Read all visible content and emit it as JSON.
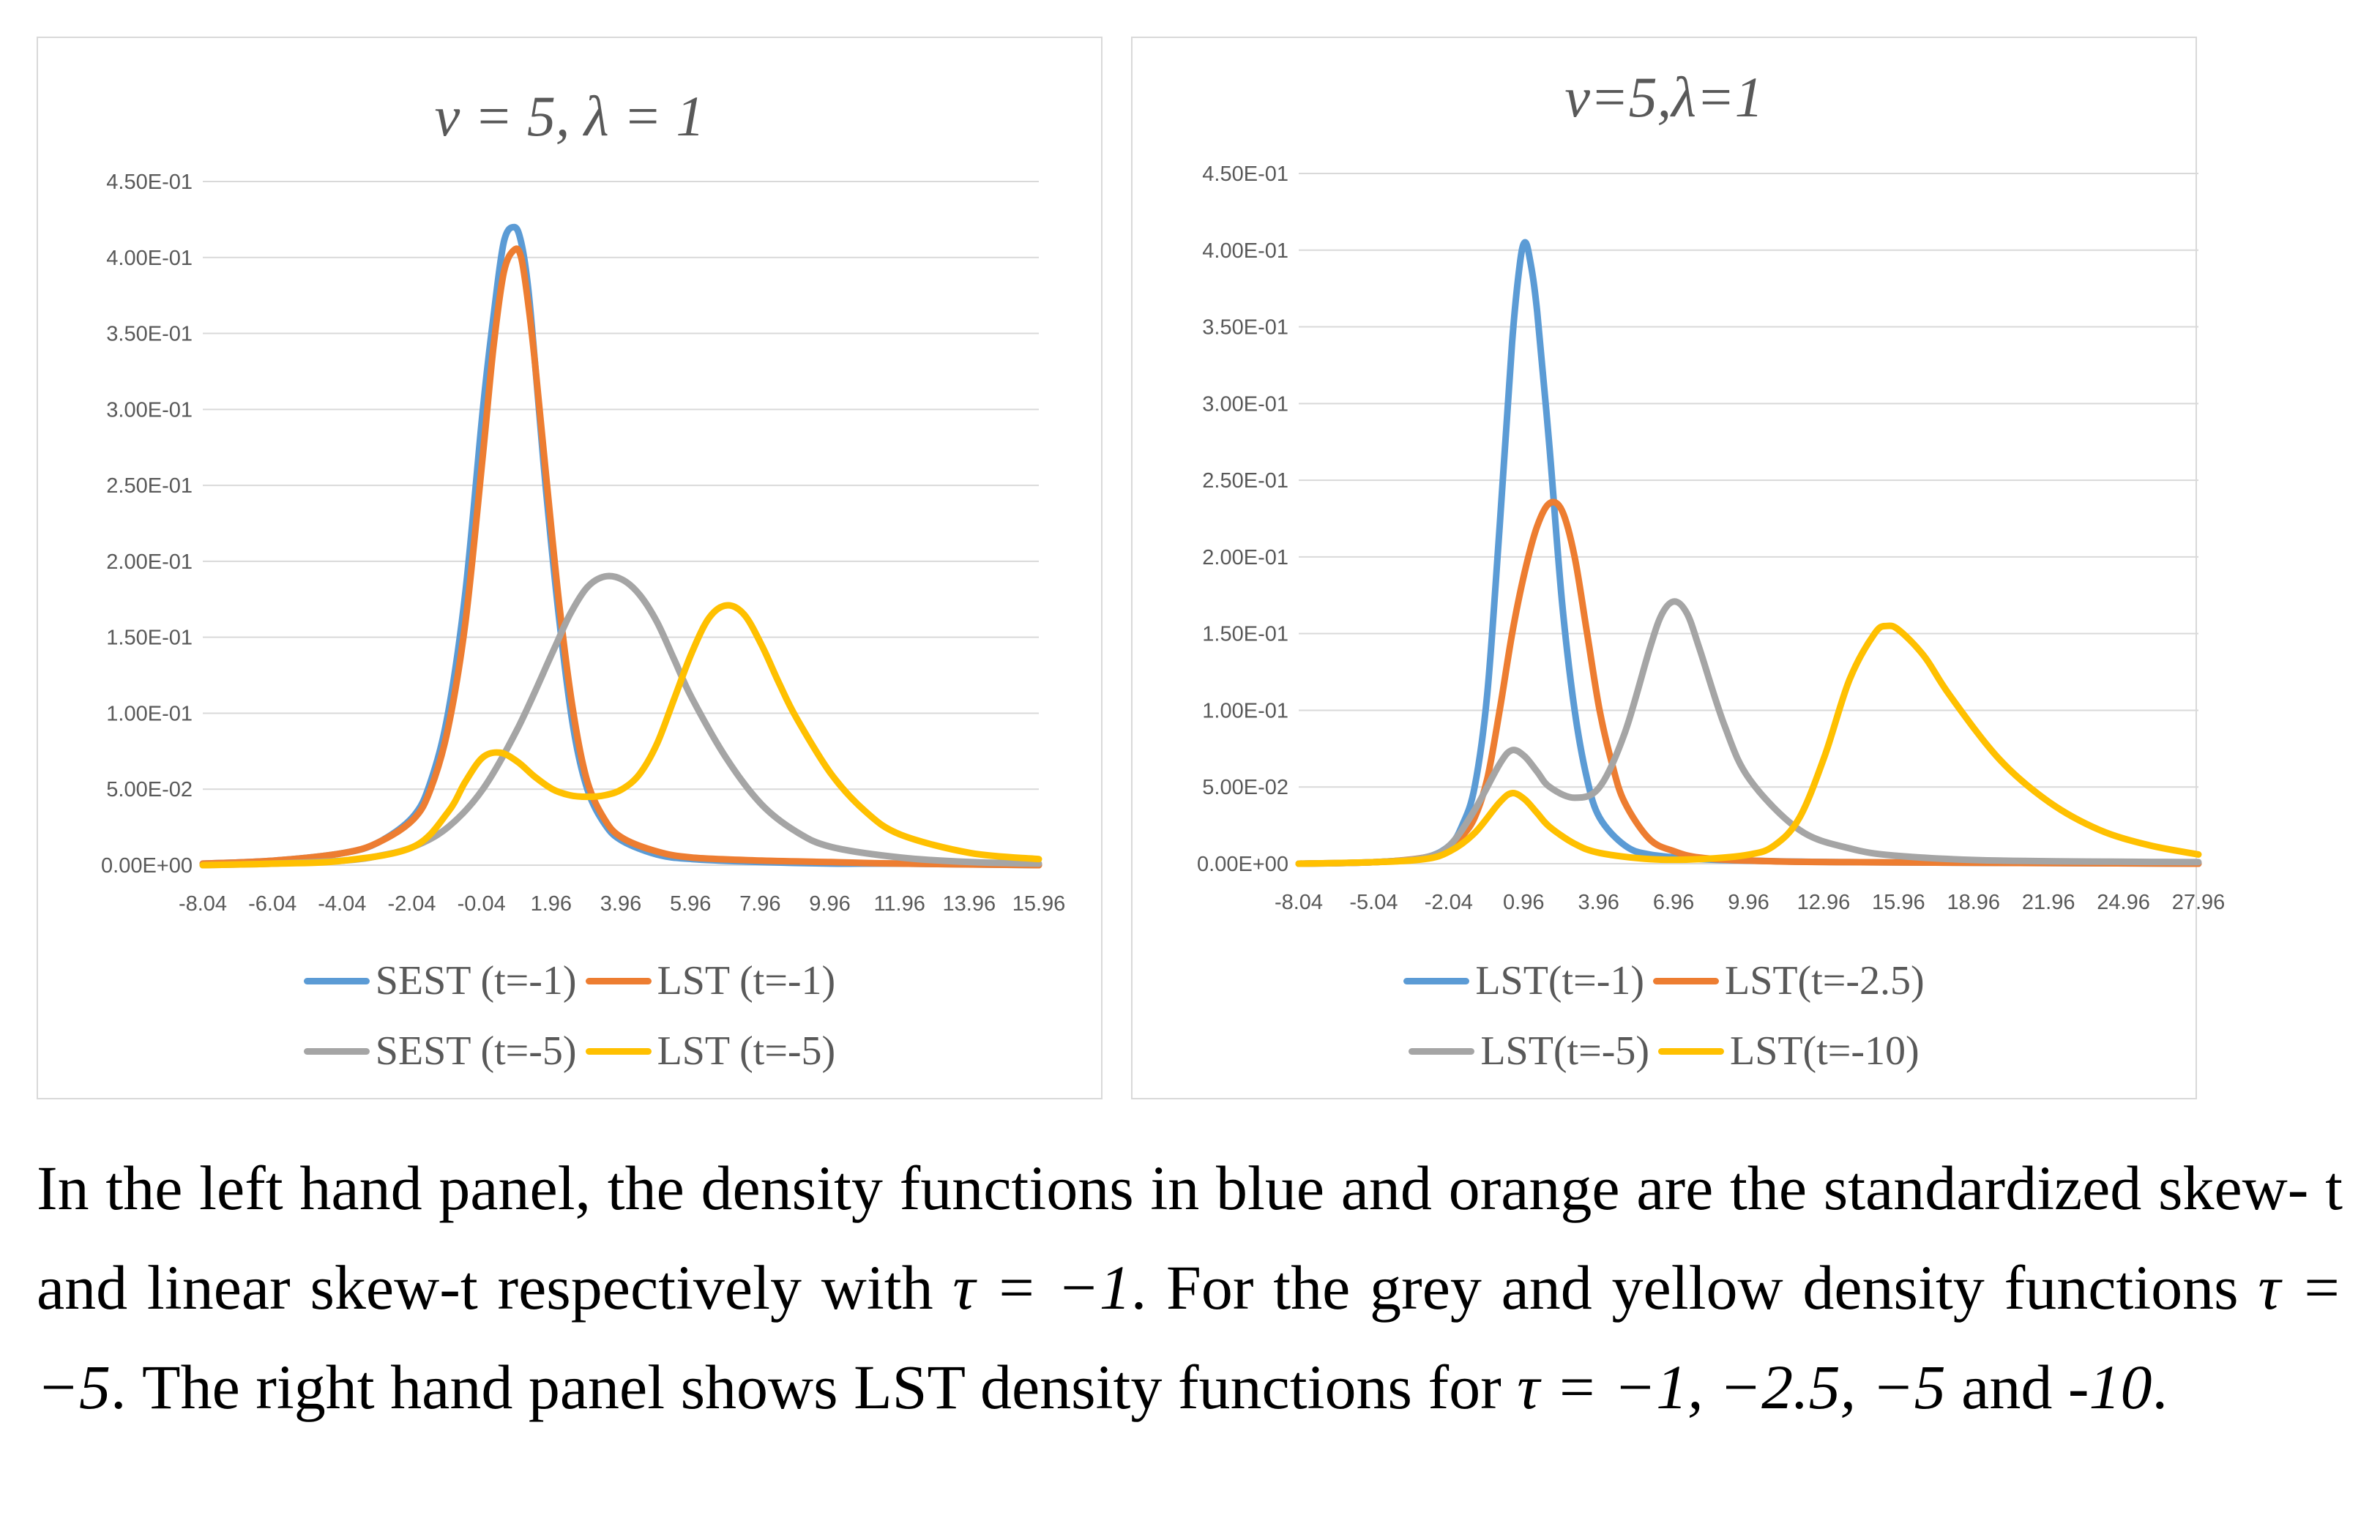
{
  "colors": {
    "blue": "#5B9BD5",
    "orange": "#ED7D31",
    "gray": "#A5A5A5",
    "yellow": "#FFC000",
    "grid": "#d9d9d9",
    "text": "#595959"
  },
  "chart_data": [
    {
      "type": "line",
      "title": "ν = 5, λ = 1",
      "xlabel": "",
      "ylabel": "",
      "ylim": [
        0,
        0.45
      ],
      "xlim": [
        -8.04,
        15.96
      ],
      "x_tick_labels": [
        "-8.04",
        "-6.04",
        "-4.04",
        "-2.04",
        "-0.04",
        "1.96",
        "3.96",
        "5.96",
        "7.96",
        "9.96",
        "11.96",
        "13.96",
        "15.96"
      ],
      "y_tick_labels": [
        "0.00E+00",
        "5.00E-02",
        "1.00E-01",
        "1.50E-01",
        "2.00E-01",
        "2.50E-01",
        "3.00E-01",
        "3.50E-01",
        "4.00E-01",
        "4.50E-01"
      ],
      "grid": true,
      "legend_position": "bottom",
      "series": [
        {
          "name": "SEST (t=-1)",
          "color": "#5B9BD5",
          "x": [
            -8.04,
            -6.0,
            -4.0,
            -3.0,
            -2.0,
            -1.5,
            -1.0,
            -0.5,
            0.0,
            0.3,
            0.6,
            0.9,
            1.1,
            1.3,
            1.5,
            1.8,
            2.2,
            2.6,
            3.0,
            3.5,
            4.0,
            5.0,
            6.0,
            8.0,
            10.0,
            12.0,
            15.96
          ],
          "y": [
            0.001,
            0.003,
            0.008,
            0.015,
            0.032,
            0.055,
            0.1,
            0.18,
            0.3,
            0.36,
            0.41,
            0.42,
            0.41,
            0.38,
            0.33,
            0.25,
            0.16,
            0.09,
            0.05,
            0.027,
            0.016,
            0.007,
            0.004,
            0.002,
            0.001,
            0.001,
            0.0
          ]
        },
        {
          "name": "LST (t=-1)",
          "color": "#ED7D31",
          "x": [
            -8.04,
            -6.0,
            -4.0,
            -3.0,
            -2.0,
            -1.5,
            -1.0,
            -0.5,
            0.0,
            0.3,
            0.6,
            0.9,
            1.1,
            1.3,
            1.5,
            1.8,
            2.2,
            2.6,
            3.0,
            3.5,
            4.0,
            5.0,
            6.0,
            8.0,
            10.0,
            12.0,
            15.96
          ],
          "y": [
            0.001,
            0.003,
            0.008,
            0.015,
            0.03,
            0.05,
            0.09,
            0.16,
            0.27,
            0.34,
            0.39,
            0.405,
            0.4,
            0.37,
            0.33,
            0.26,
            0.17,
            0.1,
            0.055,
            0.03,
            0.018,
            0.009,
            0.005,
            0.003,
            0.002,
            0.001,
            0.0
          ]
        },
        {
          "name": "SEST (t=-5)",
          "color": "#A5A5A5",
          "x": [
            -8.04,
            -6.0,
            -4.0,
            -3.0,
            -2.0,
            -1.0,
            0.0,
            1.0,
            2.0,
            2.5,
            3.0,
            3.5,
            4.0,
            4.5,
            5.0,
            5.5,
            6.0,
            7.0,
            8.0,
            9.0,
            10.0,
            12.0,
            14.0,
            15.96
          ],
          "y": [
            0.0,
            0.001,
            0.003,
            0.006,
            0.012,
            0.025,
            0.05,
            0.09,
            0.14,
            0.165,
            0.183,
            0.19,
            0.188,
            0.178,
            0.16,
            0.135,
            0.11,
            0.07,
            0.04,
            0.022,
            0.012,
            0.005,
            0.002,
            0.001
          ]
        },
        {
          "name": "LST (t=-5)",
          "color": "#FFC000",
          "x": [
            -8.04,
            -6.0,
            -4.0,
            -2.0,
            -1.0,
            -0.5,
            0.0,
            0.5,
            1.0,
            1.5,
            2.0,
            2.5,
            3.0,
            3.5,
            4.0,
            4.5,
            5.0,
            5.5,
            6.0,
            6.5,
            7.0,
            7.5,
            8.0,
            8.5,
            9.0,
            10.0,
            11.0,
            12.0,
            14.0,
            15.96
          ],
          "y": [
            0.0,
            0.001,
            0.003,
            0.012,
            0.035,
            0.055,
            0.071,
            0.074,
            0.068,
            0.058,
            0.05,
            0.046,
            0.045,
            0.046,
            0.05,
            0.06,
            0.08,
            0.11,
            0.14,
            0.163,
            0.171,
            0.165,
            0.145,
            0.12,
            0.097,
            0.06,
            0.035,
            0.02,
            0.008,
            0.004
          ]
        }
      ]
    },
    {
      "type": "line",
      "title": "ν=5,λ=1",
      "xlabel": "",
      "ylabel": "",
      "ylim": [
        0,
        0.45
      ],
      "xlim": [
        -8.04,
        27.96
      ],
      "x_tick_labels": [
        "-8.04",
        "-5.04",
        "-2.04",
        "0.96",
        "3.96",
        "6.96",
        "9.96",
        "12.96",
        "15.96",
        "18.96",
        "21.96",
        "24.96",
        "27.96"
      ],
      "y_tick_labels": [
        "0.00E+00",
        "5.00E-02",
        "1.00E-01",
        "1.50E-01",
        "2.00E-01",
        "2.50E-01",
        "3.00E-01",
        "3.50E-01",
        "4.00E-01",
        "4.50E-01"
      ],
      "grid": true,
      "legend_position": "bottom",
      "series": [
        {
          "name": "LST(t=-1)",
          "color": "#5B9BD5",
          "x": [
            -8.04,
            -5.0,
            -3.0,
            -2.0,
            -1.5,
            -1.0,
            -0.5,
            0.0,
            0.5,
            0.8,
            1.0,
            1.2,
            1.5,
            2.0,
            2.5,
            3.0,
            3.5,
            4.0,
            5.0,
            6.0,
            8.0,
            10.0,
            14.0,
            27.96
          ],
          "y": [
            0.0,
            0.001,
            0.004,
            0.012,
            0.025,
            0.05,
            0.11,
            0.22,
            0.34,
            0.39,
            0.405,
            0.395,
            0.36,
            0.27,
            0.17,
            0.1,
            0.055,
            0.03,
            0.012,
            0.006,
            0.003,
            0.002,
            0.001,
            0.0
          ]
        },
        {
          "name": "LST(t=-2.5)",
          "color": "#ED7D31",
          "x": [
            -8.04,
            -5.0,
            -3.0,
            -2.0,
            -1.5,
            -1.0,
            -0.5,
            0.0,
            0.5,
            1.0,
            1.5,
            2.0,
            2.5,
            3.0,
            3.5,
            4.0,
            4.5,
            5.0,
            6.0,
            7.0,
            8.0,
            10.0,
            14.0,
            27.96
          ],
          "y": [
            0.0,
            0.001,
            0.004,
            0.01,
            0.018,
            0.03,
            0.055,
            0.1,
            0.15,
            0.19,
            0.22,
            0.235,
            0.23,
            0.2,
            0.15,
            0.1,
            0.065,
            0.04,
            0.016,
            0.008,
            0.004,
            0.002,
            0.001,
            0.0
          ]
        },
        {
          "name": "LST(t=-5)",
          "color": "#A5A5A5",
          "x": [
            -8.04,
            -5.0,
            -3.0,
            -2.0,
            -1.0,
            0.0,
            0.5,
            1.0,
            1.5,
            2.0,
            3.0,
            4.0,
            5.0,
            6.0,
            6.5,
            7.0,
            7.5,
            8.0,
            9.0,
            10.0,
            12.0,
            14.0,
            16.0,
            20.0,
            27.96
          ],
          "y": [
            0.0,
            0.001,
            0.004,
            0.012,
            0.035,
            0.065,
            0.074,
            0.07,
            0.06,
            0.05,
            0.043,
            0.05,
            0.085,
            0.14,
            0.163,
            0.171,
            0.163,
            0.14,
            0.09,
            0.055,
            0.022,
            0.01,
            0.005,
            0.002,
            0.001
          ]
        },
        {
          "name": "LST(t=-10)",
          "color": "#FFC000",
          "x": [
            -8.04,
            -5.0,
            -3.0,
            -2.0,
            -1.0,
            0.0,
            0.5,
            1.0,
            1.5,
            2.0,
            3.0,
            4.0,
            6.0,
            8.0,
            10.0,
            11.0,
            12.0,
            13.0,
            14.0,
            15.0,
            15.5,
            16.0,
            17.0,
            18.0,
            20.0,
            22.0,
            24.0,
            26.0,
            27.96
          ],
          "y": [
            0.0,
            0.001,
            0.003,
            0.008,
            0.02,
            0.04,
            0.046,
            0.042,
            0.033,
            0.024,
            0.013,
            0.007,
            0.003,
            0.003,
            0.006,
            0.012,
            0.03,
            0.07,
            0.12,
            0.15,
            0.155,
            0.152,
            0.135,
            0.11,
            0.068,
            0.04,
            0.022,
            0.012,
            0.006
          ]
        }
      ]
    }
  ],
  "caption": {
    "p1": "In the left hand panel, the density functions in blue and orange are the standardized skew- t and linear skew-t respectively with ",
    "m1": "τ = −1",
    "p2": ". For the grey and yellow density functions ",
    "m2": "τ = −5",
    "p3": ". The right hand panel shows LST density functions for ",
    "m3": "τ = −1, −2.5, −5",
    "p4": " and ",
    "m4": "-10",
    "p5": "."
  }
}
